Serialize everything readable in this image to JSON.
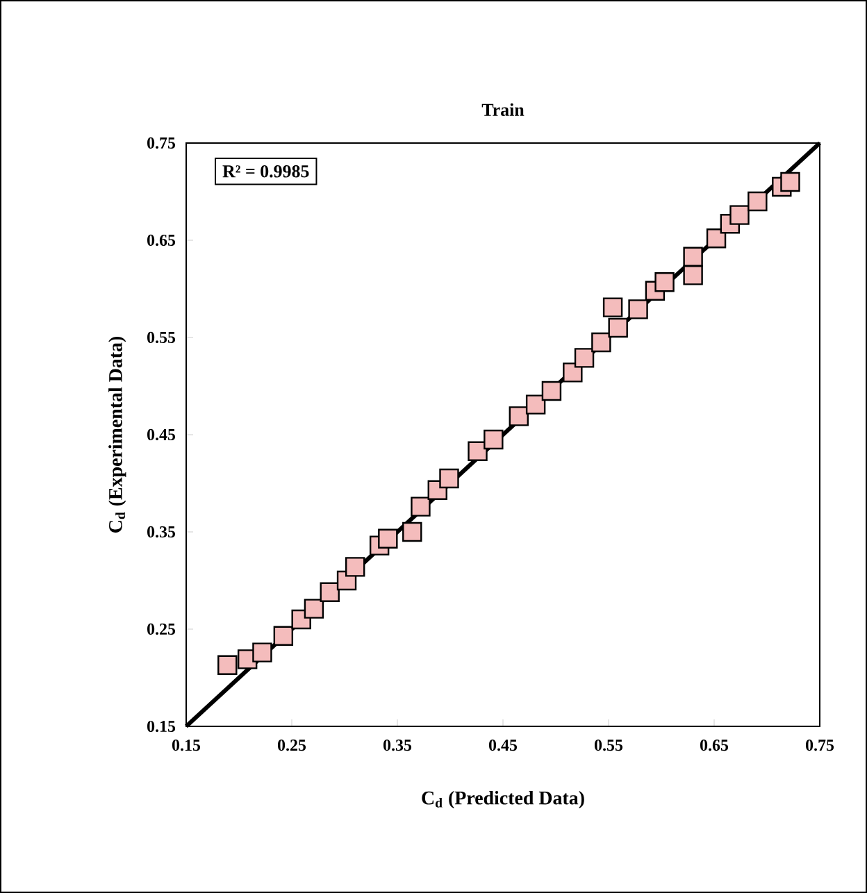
{
  "chart_data": {
    "type": "scatter",
    "title": "Train",
    "xlabel": "C$_{d}$ (Predicted Data)",
    "ylabel": "C$_{d}$ (Experimental Data)",
    "annotations": [
      "R² = 0.9985"
    ],
    "xlim": [
      0.15,
      0.75
    ],
    "ylim": [
      0.15,
      0.75
    ],
    "xticks": [
      0.15,
      0.25,
      0.35,
      0.45,
      0.55,
      0.65,
      0.75
    ],
    "yticks": [
      0.15,
      0.25,
      0.35,
      0.45,
      0.55,
      0.65,
      0.75
    ],
    "series": [
      {
        "marker": "square",
        "color": "#f4bcbc",
        "x": [
          0.189,
          0.208,
          0.222,
          0.242,
          0.259,
          0.271,
          0.286,
          0.302,
          0.31,
          0.333,
          0.341,
          0.364,
          0.372,
          0.388,
          0.399,
          0.426,
          0.441,
          0.465,
          0.481,
          0.496,
          0.516,
          0.527,
          0.543,
          0.554,
          0.559,
          0.578,
          0.594,
          0.603,
          0.63,
          0.63,
          0.652,
          0.665,
          0.674,
          0.691,
          0.714,
          0.722
        ],
        "values": [
          0.213,
          0.219,
          0.226,
          0.243,
          0.26,
          0.271,
          0.288,
          0.3,
          0.314,
          0.336,
          0.343,
          0.35,
          0.376,
          0.393,
          0.405,
          0.433,
          0.445,
          0.469,
          0.481,
          0.495,
          0.514,
          0.529,
          0.545,
          0.581,
          0.56,
          0.579,
          0.598,
          0.607,
          0.614,
          0.633,
          0.652,
          0.667,
          0.676,
          0.69,
          0.705,
          0.71
        ]
      },
      {
        "type": "line",
        "marker": "none",
        "color": "#000000",
        "x": [
          0.15,
          0.75
        ],
        "values": [
          0.15,
          0.75
        ]
      }
    ]
  }
}
